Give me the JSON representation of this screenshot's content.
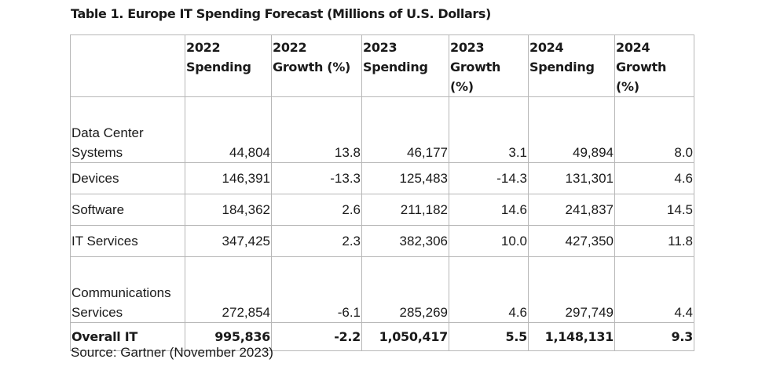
{
  "title": "Table 1. Europe IT Spending Forecast (Millions of U.S. Dollars)",
  "table": {
    "headers": [
      "",
      "2022 Spending",
      "2022 Growth (%)",
      "2023 Spending",
      "2023 Growth (%)",
      "2024 Spending",
      "2024 Growth (%)"
    ],
    "rows": [
      {
        "label": "Data Center Systems",
        "cells": [
          "44,804",
          "13.8",
          "46,177",
          "3.1",
          "49,894",
          "8.0"
        ]
      },
      {
        "label": "Devices",
        "cells": [
          "146,391",
          "-13.3",
          "125,483",
          "-14.3",
          "131,301",
          "4.6"
        ]
      },
      {
        "label": "Software",
        "cells": [
          "184,362",
          "2.6",
          "211,182",
          "14.6",
          "241,837",
          "14.5"
        ]
      },
      {
        "label": "IT Services",
        "cells": [
          "347,425",
          "2.3",
          "382,306",
          "10.0",
          "427,350",
          "11.8"
        ]
      },
      {
        "label": "Communications Services",
        "cells": [
          "272,854",
          "-6.1",
          "285,269",
          "4.6",
          "297,749",
          "4.4"
        ]
      }
    ],
    "total": {
      "label": "Overall IT",
      "cells": [
        "995,836",
        "-2.2",
        "1,050,417",
        "5.5",
        "1,148,131",
        "9.3"
      ]
    }
  },
  "source": "Source: Gartner (November 2023)"
}
